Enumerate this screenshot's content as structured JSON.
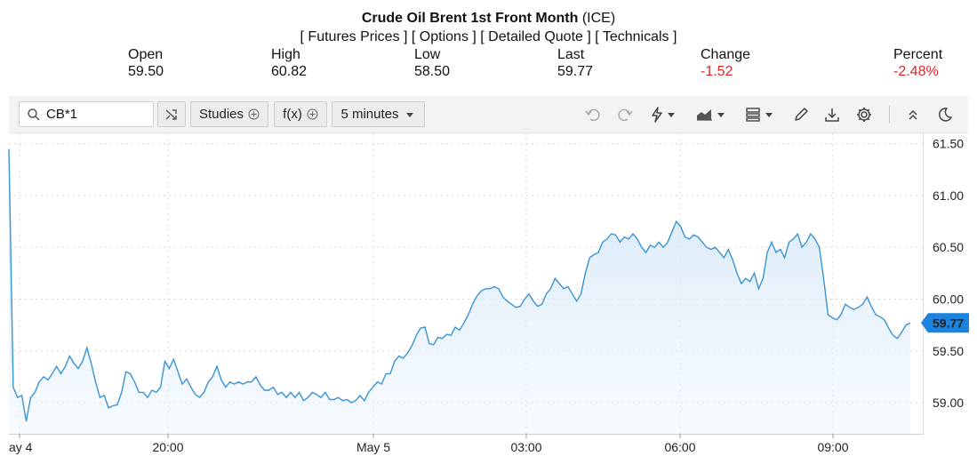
{
  "header": {
    "name": "Crude Oil Brent 1st Front Month",
    "exchange": "(ICE)",
    "links": {
      "futures": "[ Futures Prices ]",
      "options": "[ Options ]",
      "detailed": "[ Detailed Quote ]",
      "technicals": "[ Technicals ]"
    }
  },
  "quote": {
    "open_label": "Open",
    "open": "59.50",
    "high_label": "High",
    "high": "60.82",
    "low_label": "Low",
    "low": "58.50",
    "last_label": "Last",
    "last": "59.77",
    "change_label": "Change",
    "change": "-1.52",
    "percent_label": "Percent",
    "percent": "-2.48%"
  },
  "toolbar": {
    "symbol": "CB*1",
    "studies": "Studies",
    "fx": "f(x)",
    "interval": "5 minutes",
    "icons": [
      "search-icon",
      "shuffle-icon",
      "undo-icon",
      "redo-icon",
      "events-icon",
      "chart-type-icon",
      "layout-icon",
      "draw-pencil-icon",
      "download-icon",
      "settings-gear-icon",
      "collapse-icon",
      "dark-mode-icon"
    ]
  },
  "colors": {
    "line": "#3a93d4",
    "area_top": "#cfe4f7",
    "negative": "#e0262b",
    "price_tag": "#1a84de"
  },
  "chart_data": {
    "type": "area",
    "ylim": [
      58.7,
      61.6
    ],
    "yticks": [
      "61.50",
      "61.00",
      "60.50",
      "60.00",
      "59.50",
      "59.00"
    ],
    "xtick_labels": [
      "ay 4",
      "20:00",
      "May 5",
      "03:00",
      "06:00",
      "09:00"
    ],
    "last_price_label": "59.77",
    "grid": true,
    "series": [
      {
        "values": [
          61.45,
          59.15,
          59.05,
          59.07,
          58.82,
          59.05,
          59.1,
          59.2,
          59.25,
          59.22,
          59.28,
          59.35,
          59.28,
          59.35,
          59.45,
          59.38,
          59.33,
          59.4,
          59.53,
          59.38,
          59.2,
          59.05,
          59.07,
          58.95,
          58.97,
          58.98,
          59.1,
          59.3,
          59.28,
          59.2,
          59.1,
          59.1,
          59.05,
          59.12,
          59.1,
          59.15,
          59.4,
          59.33,
          59.42,
          59.3,
          59.18,
          59.23,
          59.15,
          59.08,
          59.05,
          59.1,
          59.2,
          59.25,
          59.35,
          59.22,
          59.15,
          59.2,
          59.18,
          59.2,
          59.18,
          59.2,
          59.2,
          59.25,
          59.17,
          59.12,
          59.12,
          59.15,
          59.08,
          59.1,
          59.05,
          59.1,
          59.05,
          59.1,
          59.02,
          59.05,
          59.1,
          59.08,
          59.05,
          59.1,
          59.03,
          59.03,
          59.05,
          59.02,
          59.03,
          59.0,
          59.02,
          59.07,
          59.02,
          59.1,
          59.15,
          59.2,
          59.18,
          59.28,
          59.28,
          59.4,
          59.45,
          59.43,
          59.48,
          59.55,
          59.65,
          59.72,
          59.73,
          59.57,
          59.56,
          59.63,
          59.62,
          59.66,
          59.65,
          59.73,
          59.7,
          59.77,
          59.85,
          59.95,
          60.03,
          60.08,
          60.1,
          60.1,
          60.12,
          60.1,
          60.02,
          59.98,
          59.95,
          59.92,
          59.93,
          60.0,
          60.05,
          59.98,
          59.93,
          59.95,
          60.05,
          60.1,
          60.2,
          60.15,
          60.1,
          60.12,
          60.05,
          59.98,
          60.05,
          60.25,
          60.4,
          60.43,
          60.45,
          60.55,
          60.58,
          60.63,
          60.62,
          60.55,
          60.6,
          60.58,
          60.63,
          60.58,
          60.5,
          60.45,
          60.52,
          60.5,
          60.55,
          60.5,
          60.55,
          60.65,
          60.75,
          60.7,
          60.6,
          60.58,
          60.62,
          60.6,
          60.55,
          60.5,
          60.48,
          60.5,
          60.45,
          60.4,
          60.48,
          60.38,
          60.25,
          60.15,
          60.2,
          60.17,
          60.25,
          60.1,
          60.2,
          60.45,
          60.55,
          60.45,
          60.48,
          60.4,
          60.55,
          60.58,
          60.63,
          60.5,
          60.55,
          60.63,
          60.58,
          60.5,
          60.2,
          59.85,
          59.82,
          59.8,
          59.85,
          59.95,
          59.92,
          59.9,
          59.92,
          59.95,
          60.02,
          59.93,
          59.85,
          59.83,
          59.8,
          59.72,
          59.65,
          59.62,
          59.68,
          59.75,
          59.77
        ]
      }
    ]
  }
}
